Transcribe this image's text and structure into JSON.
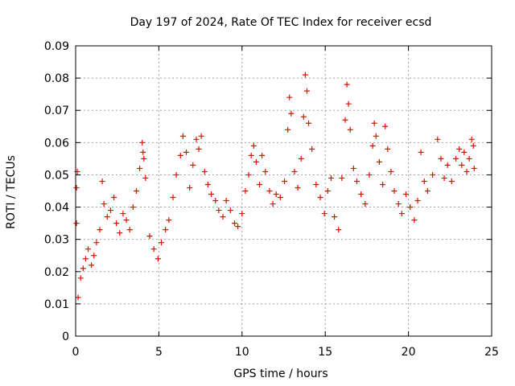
{
  "chart_data": {
    "type": "scatter",
    "title": "Day 197 of 2024, Rate Of TEC Index for receiver ecsd",
    "xlabel": "GPS time / hours",
    "ylabel": "ROTI / TECUs",
    "xlim": [
      0,
      25
    ],
    "ylim": [
      0,
      0.09
    ],
    "x_ticks": [
      "0",
      "5",
      "10",
      "15",
      "20",
      "25"
    ],
    "y_ticks": [
      "0",
      "0.01",
      "0.02",
      "0.03",
      "0.04",
      "0.05",
      "0.06",
      "0.07",
      "0.08",
      "0.09"
    ],
    "grid": true,
    "marker": "+",
    "color": "#ff0000",
    "series": [
      {
        "points": [
          [
            0.05,
            0.046
          ],
          [
            0.05,
            0.035
          ],
          [
            0.1,
            0.051
          ],
          [
            0.15,
            0.012
          ],
          [
            0.3,
            0.018
          ],
          [
            0.45,
            0.021
          ],
          [
            0.6,
            0.024
          ],
          [
            0.75,
            0.027
          ],
          [
            0.95,
            0.022
          ],
          [
            1.1,
            0.025
          ],
          [
            1.25,
            0.029
          ],
          [
            1.45,
            0.033
          ],
          [
            1.6,
            0.048
          ],
          [
            1.7,
            0.041
          ],
          [
            1.9,
            0.037
          ],
          [
            2.1,
            0.039
          ],
          [
            2.3,
            0.043
          ],
          [
            2.45,
            0.035
          ],
          [
            2.65,
            0.032
          ],
          [
            2.85,
            0.038
          ],
          [
            3.05,
            0.036
          ],
          [
            3.25,
            0.033
          ],
          [
            3.45,
            0.04
          ],
          [
            3.65,
            0.045
          ],
          [
            3.85,
            0.052
          ],
          [
            4.0,
            0.06
          ],
          [
            4.05,
            0.057
          ],
          [
            4.1,
            0.055
          ],
          [
            4.2,
            0.049
          ],
          [
            4.45,
            0.031
          ],
          [
            4.7,
            0.027
          ],
          [
            4.95,
            0.024
          ],
          [
            5.15,
            0.029
          ],
          [
            5.4,
            0.033
          ],
          [
            5.6,
            0.036
          ],
          [
            5.85,
            0.043
          ],
          [
            6.05,
            0.05
          ],
          [
            6.3,
            0.056
          ],
          [
            6.45,
            0.062
          ],
          [
            6.65,
            0.057
          ],
          [
            6.85,
            0.046
          ],
          [
            7.05,
            0.053
          ],
          [
            7.25,
            0.061
          ],
          [
            7.4,
            0.058
          ],
          [
            7.55,
            0.062
          ],
          [
            7.75,
            0.051
          ],
          [
            7.95,
            0.047
          ],
          [
            8.15,
            0.044
          ],
          [
            8.4,
            0.042
          ],
          [
            8.6,
            0.039
          ],
          [
            8.85,
            0.037
          ],
          [
            9.05,
            0.042
          ],
          [
            9.3,
            0.039
          ],
          [
            9.55,
            0.035
          ],
          [
            9.75,
            0.034
          ],
          [
            10.0,
            0.038
          ],
          [
            10.2,
            0.045
          ],
          [
            10.4,
            0.05
          ],
          [
            10.55,
            0.056
          ],
          [
            10.7,
            0.059
          ],
          [
            10.85,
            0.054
          ],
          [
            11.05,
            0.047
          ],
          [
            11.2,
            0.056
          ],
          [
            11.4,
            0.051
          ],
          [
            11.65,
            0.045
          ],
          [
            11.85,
            0.041
          ],
          [
            12.05,
            0.044
          ],
          [
            12.3,
            0.043
          ],
          [
            12.55,
            0.048
          ],
          [
            12.75,
            0.064
          ],
          [
            12.85,
            0.074
          ],
          [
            12.95,
            0.069
          ],
          [
            13.15,
            0.051
          ],
          [
            13.35,
            0.046
          ],
          [
            13.55,
            0.055
          ],
          [
            13.7,
            0.068
          ],
          [
            13.8,
            0.081
          ],
          [
            13.9,
            0.076
          ],
          [
            14.0,
            0.066
          ],
          [
            14.2,
            0.058
          ],
          [
            14.45,
            0.047
          ],
          [
            14.7,
            0.043
          ],
          [
            14.95,
            0.038
          ],
          [
            15.15,
            0.045
          ],
          [
            15.35,
            0.049
          ],
          [
            15.55,
            0.037
          ],
          [
            15.8,
            0.033
          ],
          [
            16.0,
            0.049
          ],
          [
            16.2,
            0.067
          ],
          [
            16.3,
            0.078
          ],
          [
            16.4,
            0.072
          ],
          [
            16.5,
            0.064
          ],
          [
            16.7,
            0.052
          ],
          [
            16.9,
            0.048
          ],
          [
            17.15,
            0.044
          ],
          [
            17.4,
            0.041
          ],
          [
            17.65,
            0.05
          ],
          [
            17.85,
            0.059
          ],
          [
            17.95,
            0.066
          ],
          [
            18.05,
            0.062
          ],
          [
            18.25,
            0.054
          ],
          [
            18.45,
            0.047
          ],
          [
            18.6,
            0.065
          ],
          [
            18.75,
            0.058
          ],
          [
            18.95,
            0.051
          ],
          [
            19.15,
            0.045
          ],
          [
            19.4,
            0.041
          ],
          [
            19.6,
            0.038
          ],
          [
            19.85,
            0.044
          ],
          [
            20.1,
            0.04
          ],
          [
            20.35,
            0.036
          ],
          [
            20.55,
            0.042
          ],
          [
            20.75,
            0.057
          ],
          [
            20.95,
            0.048
          ],
          [
            21.15,
            0.045
          ],
          [
            21.45,
            0.05
          ],
          [
            21.75,
            0.061
          ],
          [
            21.95,
            0.055
          ],
          [
            22.15,
            0.049
          ],
          [
            22.35,
            0.053
          ],
          [
            22.6,
            0.048
          ],
          [
            22.85,
            0.055
          ],
          [
            23.05,
            0.058
          ],
          [
            23.2,
            0.053
          ],
          [
            23.35,
            0.057
          ],
          [
            23.5,
            0.051
          ],
          [
            23.65,
            0.055
          ],
          [
            23.8,
            0.061
          ],
          [
            23.9,
            0.059
          ],
          [
            23.95,
            0.052
          ]
        ]
      }
    ]
  }
}
